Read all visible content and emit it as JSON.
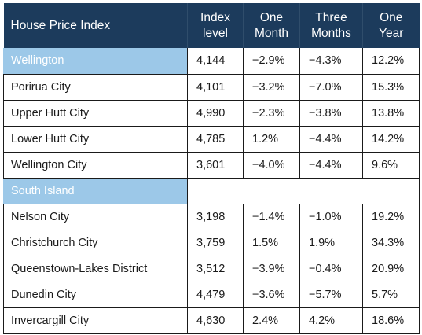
{
  "table": {
    "headers": {
      "name": "House Price Index",
      "index_line1": "Index",
      "index_line2": "level",
      "month_line1": "One",
      "month_line2": "Month",
      "three_line1": "Three",
      "three_line2": "Months",
      "year_line1": "One",
      "year_line2": "Year"
    },
    "rows": [
      {
        "name": "Wellington",
        "index": "4,144",
        "one_month": "−2.9%",
        "three_months": "−4.3%",
        "one_year": "12.2%"
      },
      {
        "name": "Porirua City",
        "index": "4,101",
        "one_month": "−3.2%",
        "three_months": "−7.0%",
        "one_year": "15.3%"
      },
      {
        "name": "Upper Hutt City",
        "index": "4,990",
        "one_month": "−2.3%",
        "three_months": "−3.8%",
        "one_year": "13.8%"
      },
      {
        "name": "Lower Hutt City",
        "index": "4,785",
        "one_month": "1.2%",
        "three_months": "−4.4%",
        "one_year": "14.2%"
      },
      {
        "name": "Wellington City",
        "index": "3,601",
        "one_month": "−4.0%",
        "three_months": "−4.4%",
        "one_year": "9.6%"
      },
      {
        "name": "South Island",
        "index": "",
        "one_month": "",
        "three_months": "",
        "one_year": ""
      },
      {
        "name": "Nelson City",
        "index": "3,198",
        "one_month": "−1.4%",
        "three_months": "−1.0%",
        "one_year": "19.2%"
      },
      {
        "name": "Christchurch City",
        "index": "3,759",
        "one_month": "1.5%",
        "three_months": "1.9%",
        "one_year": "34.3%"
      },
      {
        "name": "Queenstown-Lakes District",
        "index": "3,512",
        "one_month": "−3.9%",
        "three_months": "−0.4%",
        "one_year": "20.9%"
      },
      {
        "name": "Dunedin City",
        "index": "4,479",
        "one_month": "−3.6%",
        "three_months": "−5.7%",
        "one_year": "5.7%"
      },
      {
        "name": "Invercargill City",
        "index": "4,630",
        "one_month": "2.4%",
        "three_months": "4.2%",
        "one_year": "18.6%"
      }
    ]
  },
  "colors": {
    "header_bg": "#1c3b5c",
    "region_bg": "#9cc8e8",
    "text": "#1a1a1a"
  }
}
